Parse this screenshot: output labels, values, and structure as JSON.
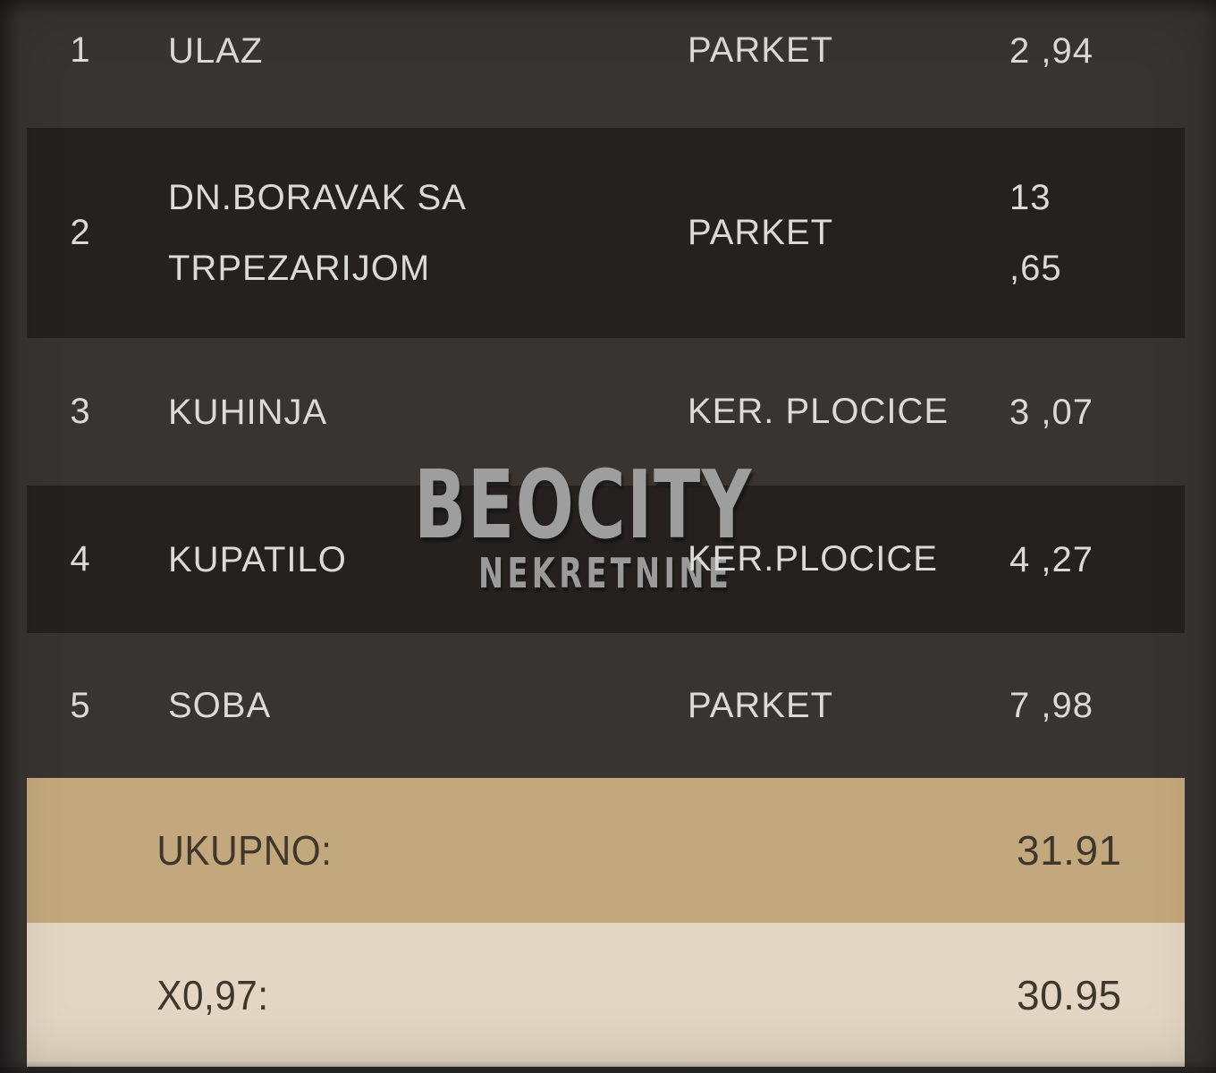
{
  "watermark": {
    "title": "BEOCITY",
    "subtitle": "NEKRETNINE"
  },
  "table": {
    "rows": [
      {
        "num": "1",
        "name_lines": [
          "ULAZ"
        ],
        "floor": "PARKET",
        "value_lines": [
          "2 ,94"
        ]
      },
      {
        "num": "2",
        "name_lines": [
          "DN.BORAVAK SA",
          "TRPEZARIJOM"
        ],
        "floor": "PARKET",
        "value_lines": [
          "13",
          ",65"
        ]
      },
      {
        "num": "3",
        "name_lines": [
          "KUHINJA"
        ],
        "floor": "KER. PLOCICE",
        "value_lines": [
          "3 ,07"
        ]
      },
      {
        "num": "4",
        "name_lines": [
          "KUPATILO"
        ],
        "floor": "KER.PLOCICE",
        "value_lines": [
          "4 ,27"
        ]
      },
      {
        "num": "5",
        "name_lines": [
          "SOBA"
        ],
        "floor": "PARKET",
        "value_lines": [
          "7 ,98"
        ]
      }
    ],
    "totals": [
      {
        "label": "UKUPNO:",
        "value": "31.91"
      },
      {
        "label": "X0,97:",
        "value": "30.95"
      }
    ]
  },
  "colors": {
    "background": "#383431",
    "row_dark": "#242120",
    "total_row_tan": "#c4a87d",
    "total_row_beige": "#e3d6c3",
    "text_light": "#dcdad7",
    "text_dark": "#3e382c",
    "watermark_gray": "#9e9e9e"
  }
}
